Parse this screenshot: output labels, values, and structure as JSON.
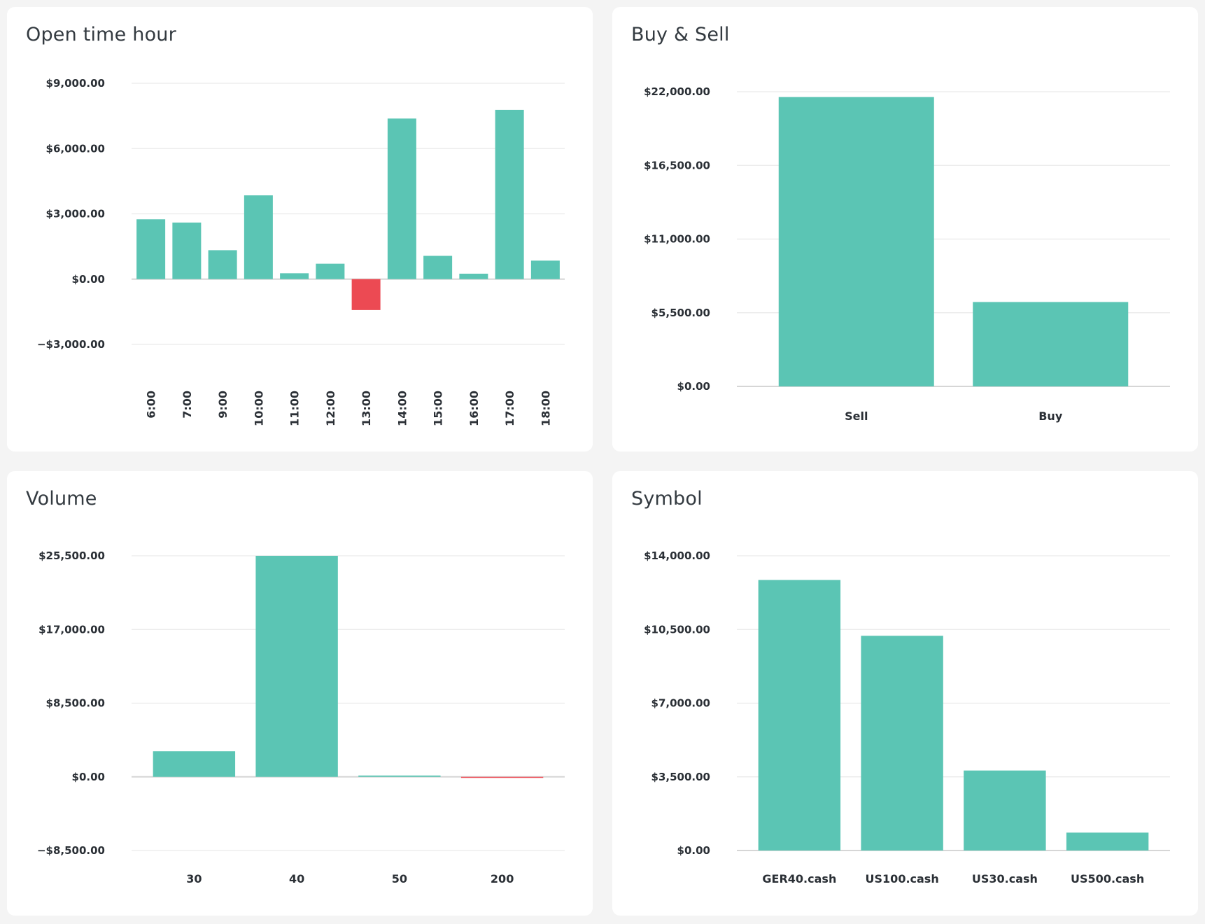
{
  "colors": {
    "positive": "#5bc5b4",
    "negative": "#ec4a53",
    "grid": "#e9e9e9",
    "baseline": "#d6d6d6",
    "axis_text": "#2a2f35"
  },
  "chart_data": [
    {
      "id": "open-time-hour",
      "type": "bar",
      "title": "Open time hour",
      "categories": [
        "6:00",
        "7:00",
        "9:00",
        "10:00",
        "11:00",
        "12:00",
        "13:00",
        "14:00",
        "15:00",
        "16:00",
        "17:00",
        "18:00"
      ],
      "values": [
        2750,
        2600,
        1330,
        3850,
        270,
        710,
        -1420,
        7380,
        1070,
        250,
        7780,
        850
      ],
      "yticks": [
        -3000,
        0,
        3000,
        6000,
        9000
      ],
      "ytick_labels": [
        "−$3,000.00",
        "$0.00",
        "$3,000.00",
        "$6,000.00",
        "$9,000.00"
      ],
      "ylim": [
        -3000,
        9000
      ],
      "category_label_rotation": "vertical",
      "grid": true,
      "legend": "none"
    },
    {
      "id": "buy-sell",
      "type": "bar",
      "title": "Buy & Sell",
      "categories": [
        "Sell",
        "Buy"
      ],
      "values": [
        21600,
        6300
      ],
      "category_colors": [
        "#ec4a53",
        "#5bc5b4"
      ],
      "yticks": [
        0,
        5500,
        11000,
        16500,
        22000
      ],
      "ytick_labels": [
        "$0.00",
        "$5,500.00",
        "$11,000.00",
        "$16,500.00",
        "$22,000.00"
      ],
      "ylim": [
        0,
        22000
      ],
      "grid": true,
      "legend": "none"
    },
    {
      "id": "volume",
      "type": "bar",
      "title": "Volume",
      "categories": [
        "30",
        "40",
        "50",
        "200"
      ],
      "values": [
        2950,
        25500,
        150,
        -120
      ],
      "yticks": [
        -8500,
        0,
        8500,
        17000,
        25500
      ],
      "ytick_labels": [
        "−$8,500.00",
        "$0.00",
        "$8,500.00",
        "$17,000.00",
        "$25,500.00"
      ],
      "ylim": [
        -8500,
        25500
      ],
      "grid": true,
      "legend": "none"
    },
    {
      "id": "symbol",
      "type": "bar",
      "title": "Symbol",
      "categories": [
        "GER40.cash",
        "US100.cash",
        "US30.cash",
        "US500.cash"
      ],
      "values": [
        12850,
        10200,
        3800,
        850
      ],
      "yticks": [
        0,
        3500,
        7000,
        10500,
        14000
      ],
      "ytick_labels": [
        "$0.00",
        "$3,500.00",
        "$7,000.00",
        "$10,500.00",
        "$14,000.00"
      ],
      "ylim": [
        0,
        14000
      ],
      "grid": true,
      "legend": "none"
    }
  ]
}
